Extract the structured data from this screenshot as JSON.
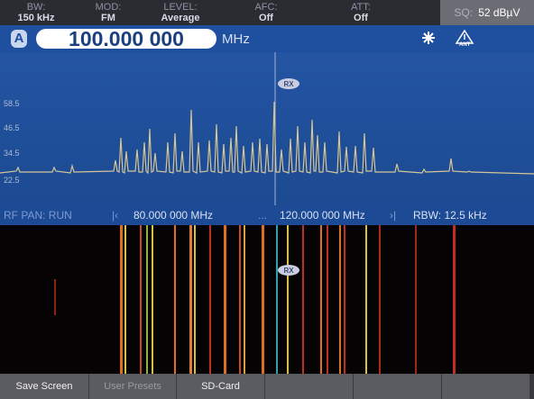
{
  "status_bar": {
    "items": [
      {
        "label": "BW:",
        "value": "150 kHz"
      },
      {
        "label": "MOD:",
        "value": "FM"
      },
      {
        "label": "LEVEL:",
        "value": "Average"
      },
      {
        "label": "AFC:",
        "value": "Off"
      },
      {
        "label": "ATT:",
        "value": "Off"
      }
    ],
    "squelch": {
      "label": "SQ:",
      "value": "52 dBµV"
    }
  },
  "frequency": {
    "channel": "A",
    "value": "100.000 000",
    "unit": "MHz",
    "antenna": "ANT"
  },
  "spectrum": {
    "levels": [
      "58.5",
      "46.5",
      "34.5",
      "22.5"
    ],
    "marker": "RX"
  },
  "pan_status": {
    "mode": "RF PAN: RUN",
    "start_arrow": "|‹",
    "start": "80.000 000 MHz",
    "separator": "...",
    "stop": "120.000 000 MHz",
    "stop_arrow": "›|",
    "rbw": "RBW: 12.5 kHz"
  },
  "waterfall": {
    "marker": "RX"
  },
  "softkeys": [
    "Save Screen",
    "User Presets",
    "SD-Card"
  ]
}
